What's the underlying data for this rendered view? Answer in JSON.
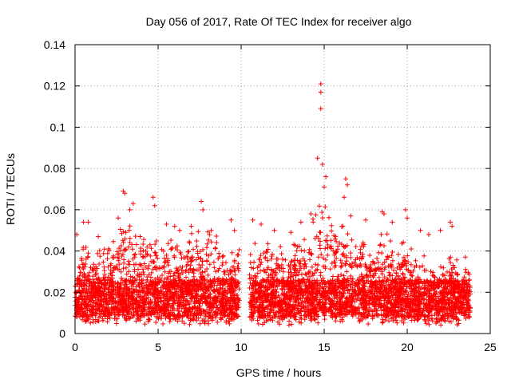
{
  "chart_data": {
    "type": "scatter",
    "title": "Day 056 of 2017, Rate Of TEC Index for receiver algo",
    "xlabel": "GPS time / hours",
    "ylabel": "ROTI / TECUs",
    "xlim": [
      0,
      25
    ],
    "ylim": [
      0,
      0.14
    ],
    "xticks": [
      "0",
      "5",
      "10",
      "15",
      "20",
      "25"
    ],
    "yticks": [
      "0",
      "0.02",
      "0.04",
      "0.06",
      "0.08",
      "0.1",
      "0.12",
      "0.14"
    ],
    "grid": true,
    "marker": "+",
    "marker_color": "#ff0000",
    "data_gap": [
      9.9,
      10.5
    ],
    "envelope": [
      [
        0.0,
        0.032
      ],
      [
        0.5,
        0.042
      ],
      [
        1.0,
        0.042
      ],
      [
        1.5,
        0.041
      ],
      [
        2.0,
        0.041
      ],
      [
        2.5,
        0.05
      ],
      [
        3.0,
        0.058
      ],
      [
        3.5,
        0.05
      ],
      [
        4.0,
        0.05
      ],
      [
        4.5,
        0.055
      ],
      [
        5.0,
        0.044
      ],
      [
        5.5,
        0.046
      ],
      [
        6.0,
        0.047
      ],
      [
        6.5,
        0.046
      ],
      [
        7.0,
        0.049
      ],
      [
        7.5,
        0.052
      ],
      [
        8.0,
        0.05
      ],
      [
        8.5,
        0.048
      ],
      [
        9.0,
        0.046
      ],
      [
        9.5,
        0.045
      ],
      [
        10.5,
        0.044
      ],
      [
        11.0,
        0.047
      ],
      [
        11.5,
        0.044
      ],
      [
        12.0,
        0.046
      ],
      [
        12.5,
        0.046
      ],
      [
        13.0,
        0.044
      ],
      [
        13.5,
        0.046
      ],
      [
        14.0,
        0.05
      ],
      [
        14.5,
        0.062
      ],
      [
        15.0,
        0.065
      ],
      [
        15.5,
        0.053
      ],
      [
        16.0,
        0.057
      ],
      [
        16.5,
        0.05
      ],
      [
        17.0,
        0.046
      ],
      [
        17.5,
        0.046
      ],
      [
        18.0,
        0.045
      ],
      [
        18.5,
        0.052
      ],
      [
        19.0,
        0.046
      ],
      [
        19.5,
        0.042
      ],
      [
        20.0,
        0.047
      ],
      [
        20.5,
        0.036
      ],
      [
        21.0,
        0.04
      ],
      [
        21.5,
        0.036
      ],
      [
        22.0,
        0.035
      ],
      [
        22.5,
        0.04
      ],
      [
        23.0,
        0.037
      ],
      [
        23.5,
        0.032
      ],
      [
        23.8,
        0.03
      ]
    ],
    "peaks": [
      [
        0.1,
        0.048
      ],
      [
        0.5,
        0.054
      ],
      [
        0.8,
        0.054
      ],
      [
        1.4,
        0.047
      ],
      [
        2.6,
        0.056
      ],
      [
        2.9,
        0.069
      ],
      [
        3.0,
        0.068
      ],
      [
        3.3,
        0.06
      ],
      [
        3.5,
        0.063
      ],
      [
        4.7,
        0.066
      ],
      [
        4.8,
        0.062
      ],
      [
        5.5,
        0.053
      ],
      [
        6.0,
        0.052
      ],
      [
        6.3,
        0.05
      ],
      [
        7.0,
        0.052
      ],
      [
        7.6,
        0.064
      ],
      [
        7.7,
        0.06
      ],
      [
        8.2,
        0.05
      ],
      [
        9.4,
        0.055
      ],
      [
        9.6,
        0.05
      ],
      [
        10.7,
        0.055
      ],
      [
        11.2,
        0.053
      ],
      [
        12.0,
        0.05
      ],
      [
        13.0,
        0.049
      ],
      [
        13.6,
        0.054
      ],
      [
        14.2,
        0.058
      ],
      [
        14.6,
        0.085
      ],
      [
        14.8,
        0.121
      ],
      [
        14.8,
        0.117
      ],
      [
        14.8,
        0.109
      ],
      [
        14.9,
        0.082
      ],
      [
        15.0,
        0.071
      ],
      [
        15.1,
        0.076
      ],
      [
        16.3,
        0.075
      ],
      [
        16.4,
        0.072
      ],
      [
        16.2,
        0.066
      ],
      [
        16.6,
        0.057
      ],
      [
        17.5,
        0.055
      ],
      [
        18.5,
        0.059
      ],
      [
        18.6,
        0.058
      ],
      [
        19.1,
        0.054
      ],
      [
        19.9,
        0.06
      ],
      [
        20.0,
        0.056
      ],
      [
        20.8,
        0.05
      ],
      [
        21.3,
        0.048
      ],
      [
        22.0,
        0.05
      ],
      [
        22.6,
        0.054
      ],
      [
        22.7,
        0.052
      ],
      [
        23.5,
        0.037
      ]
    ]
  }
}
